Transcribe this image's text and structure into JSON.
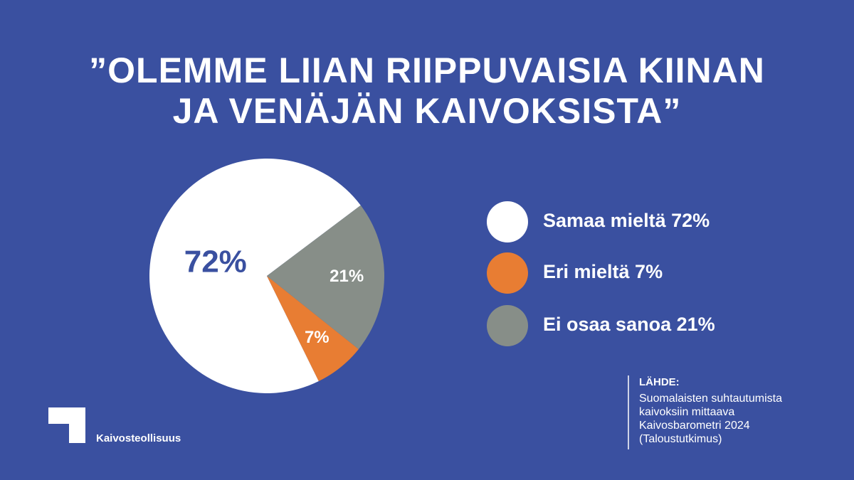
{
  "chart_data": {
    "type": "pie",
    "title_lines": [
      "”OLEMME LIIAN RIIPPUVAISIA KIINAN",
      "JA VENÄJÄN KAIVOKSISTA”"
    ],
    "categories": [
      "Samaa mieltä 72%",
      "Eri mieltä 7%",
      "Ei osaa sanoa 21%"
    ],
    "values": [
      72,
      7,
      21
    ],
    "value_labels": [
      "72%",
      "7%",
      "21%"
    ],
    "colors": [
      "#ffffff",
      "#e87d33",
      "#878e88"
    ],
    "label_colors": [
      "#3a50a0",
      "#ffffff",
      "#ffffff"
    ],
    "startangle": 53,
    "counterclock": true
  },
  "source": {
    "heading": "LÄHDE:",
    "lines": [
      "Suomalaisten suhtautumista",
      "kaivoksiin mittaava",
      "Kaivosbarometri 2024",
      "(Taloustutkimus)"
    ]
  },
  "logo": "Kaivosteollisuus"
}
